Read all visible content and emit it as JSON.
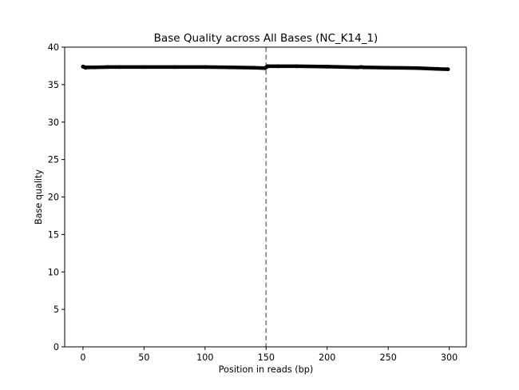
{
  "chart_data": {
    "type": "line",
    "title": "Base Quality across All Bases (NC_K14_1)",
    "xlabel": "Position in reads (bp)",
    "ylabel": "Base quality",
    "xlim": [
      -15,
      314
    ],
    "ylim": [
      0,
      40
    ],
    "xticks": [
      0,
      50,
      100,
      150,
      200,
      250,
      300
    ],
    "yticks": [
      0,
      5,
      10,
      15,
      20,
      25,
      30,
      35,
      40
    ],
    "grid": false,
    "legend": "none",
    "series": [
      {
        "color": "#000000",
        "x": [
          0,
          1,
          2,
          3,
          5,
          10,
          20,
          30,
          50,
          75,
          100,
          120,
          140,
          149,
          150,
          151,
          152,
          160,
          175,
          200,
          225,
          228,
          230,
          250,
          275,
          290,
          299
        ],
        "y": [
          37.4,
          37.35,
          37.25,
          37.3,
          37.3,
          37.3,
          37.35,
          37.35,
          37.35,
          37.35,
          37.35,
          37.3,
          37.25,
          37.2,
          37.3,
          37.45,
          37.45,
          37.45,
          37.45,
          37.4,
          37.3,
          37.35,
          37.3,
          37.25,
          37.2,
          37.1,
          37.05
        ]
      }
    ],
    "vertical_line": {
      "x": 150,
      "style": "dashed",
      "color": "#7f7f7f"
    }
  }
}
